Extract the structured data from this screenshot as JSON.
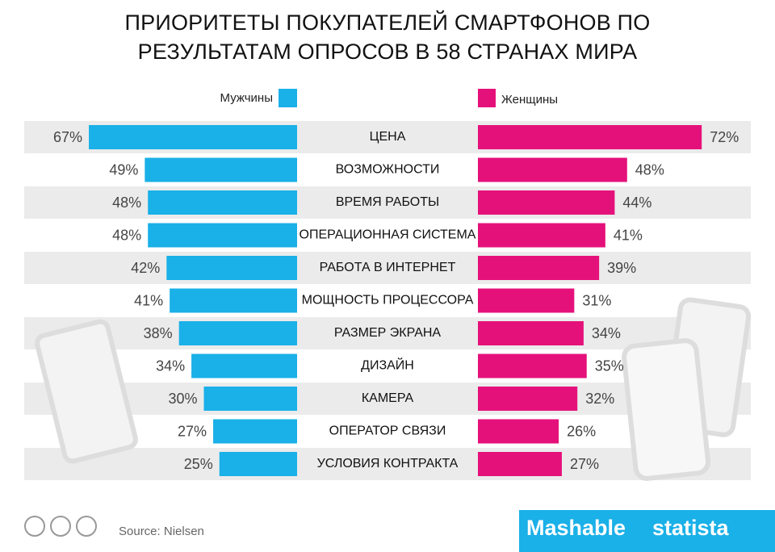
{
  "chart_data": {
    "type": "butterfly",
    "title": "ПРИОРИТЕТЫ ПОКУПАТЕЛЕЙ СМАРТФОНОВ ПО РЕЗУЛЬТАТАМ  ОПРОСОВ  В  58 СТРАНАХ МИРА",
    "categories": [
      "ЦЕНА",
      "ВОЗМОЖНОСТИ",
      "ВРЕМЯ РАБОТЫ",
      "ОПЕРАЦИОННАЯ СИСТЕМА",
      "РАБОТА В ИНТЕРНЕТ",
      "МОЩНОСТЬ ПРОЦЕССОРА",
      "РАЗМЕР ЭКРАНА",
      "ДИЗАЙН",
      "КАМЕРА",
      "ОПЕРАТОР СВЯЗИ",
      "УСЛОВИЯ КОНТРАКТА"
    ],
    "series": [
      {
        "name": "Мужчины",
        "color": "#1ab0e8",
        "values": [
          67,
          49,
          48,
          48,
          42,
          41,
          38,
          34,
          30,
          27,
          25
        ],
        "value_labels": [
          "67%",
          "49%",
          "48%",
          "48%",
          "42%",
          "41%",
          "38%",
          "34%",
          "30%",
          "27%",
          "25%"
        ]
      },
      {
        "name": "Женщины",
        "color": "#e5117b",
        "values": [
          72,
          48,
          44,
          41,
          39,
          31,
          34,
          35,
          32,
          26,
          27
        ],
        "value_labels": [
          "72%",
          "48%",
          "44%",
          "41%",
          "39%",
          "31%",
          "34%",
          "35%",
          "32%",
          "26%",
          "27%"
        ]
      }
    ],
    "source": "Source: Nielsen",
    "logos": [
      "Mashable",
      "statista"
    ]
  }
}
